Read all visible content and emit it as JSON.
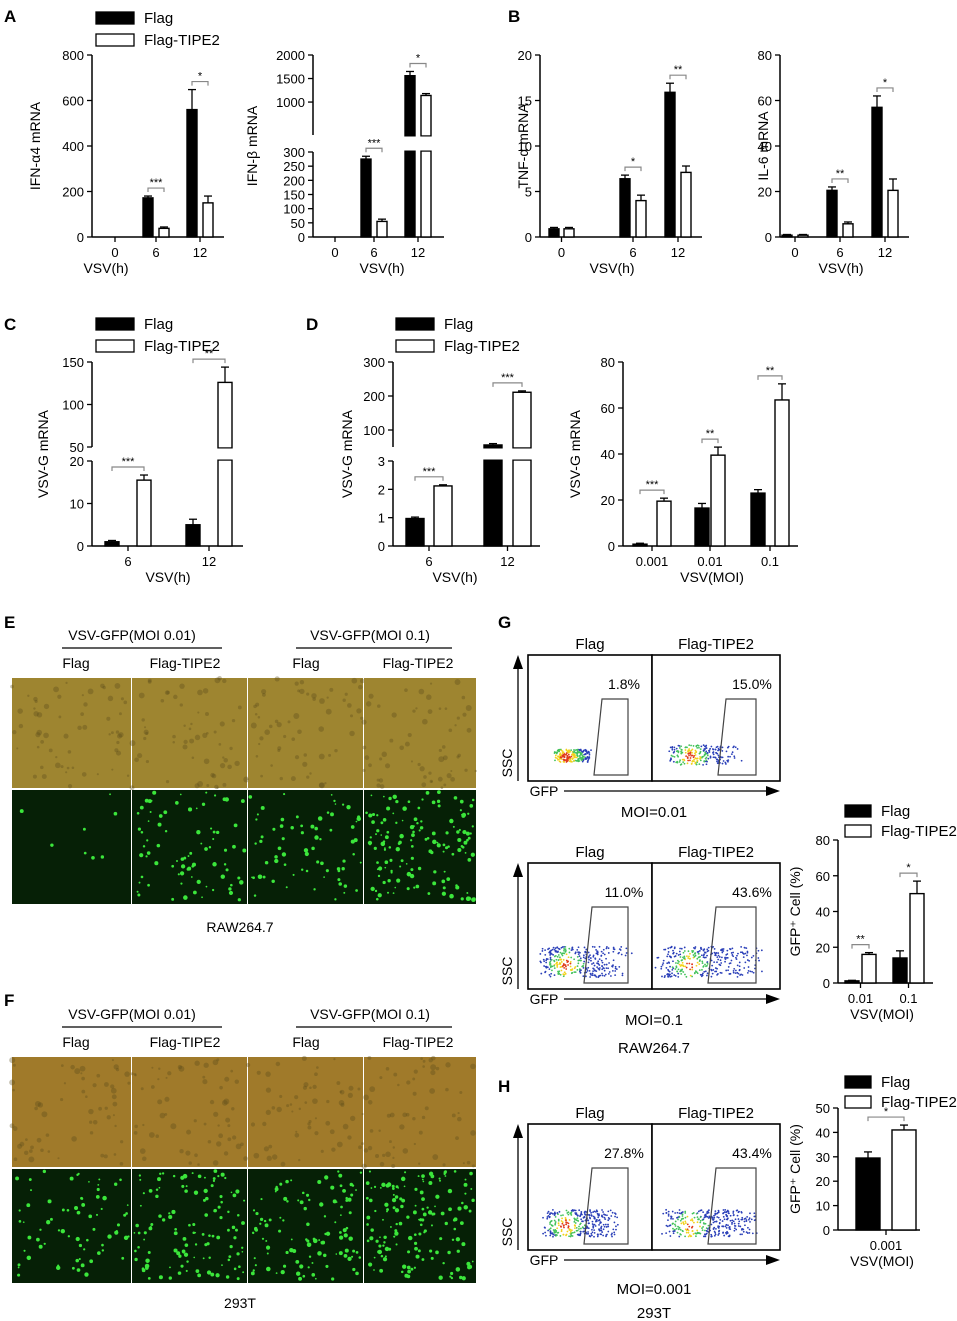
{
  "panel_letters": {
    "A": "A",
    "B": "B",
    "C": "C",
    "D": "D",
    "E": "E",
    "F": "F",
    "G": "G",
    "H": "H"
  },
  "colors": {
    "flag": "#000000",
    "tipe2": "#ffffff",
    "bf_raw": "#9e8530",
    "bf_293": "#a07a2a",
    "fluor_bg": "#062006",
    "fluor_dot": "#3be63b"
  },
  "chart_data": [
    {
      "id": "A1",
      "type": "bar",
      "panel": "A",
      "ylabel": "IFN-α4 mRNA",
      "xlabel": "VSV(h)",
      "categories": [
        "0",
        "6",
        "12"
      ],
      "ylim": [
        0,
        800
      ],
      "yticks": [
        "0",
        "200",
        "400",
        "600",
        "800"
      ],
      "legend": [
        "Flag",
        "Flag-TIPE2"
      ],
      "series": [
        {
          "name": "Flag",
          "values": [
            0,
            172,
            560
          ],
          "err": [
            0,
            8,
            88
          ]
        },
        {
          "name": "Flag-TIPE2",
          "values": [
            0,
            38,
            150
          ],
          "err": [
            0,
            6,
            30
          ]
        }
      ],
      "significance": [
        "",
        "***",
        "*"
      ]
    },
    {
      "id": "A2",
      "type": "bar",
      "panel": "A",
      "ylabel": "IFN-β mRNA",
      "xlabel": "VSV(h)",
      "categories": [
        "0",
        "6",
        "12"
      ],
      "broken_axis": {
        "lower": [
          0,
          300
        ],
        "upper": [
          300,
          2000
        ]
      },
      "yticks_lower": [
        "0",
        "50",
        "100",
        "150",
        "200",
        "250",
        "300"
      ],
      "yticks_upper": [
        "1000",
        "1500",
        "2000"
      ],
      "series": [
        {
          "name": "Flag",
          "values": [
            0,
            275,
            1560
          ],
          "err": [
            0,
            10,
            90
          ]
        },
        {
          "name": "Flag-TIPE2",
          "values": [
            0,
            55,
            1140
          ],
          "err": [
            0,
            8,
            40
          ]
        }
      ],
      "significance": [
        "",
        "***",
        "*"
      ]
    },
    {
      "id": "B1",
      "type": "bar",
      "panel": "B",
      "ylabel": "TNF-α mRNA",
      "xlabel": "VSV(h)",
      "categories": [
        "0",
        "6",
        "12"
      ],
      "ylim": [
        0,
        20
      ],
      "yticks": [
        "0",
        "5",
        "10",
        "15",
        "20"
      ],
      "series": [
        {
          "name": "Flag",
          "values": [
            0.9,
            6.4,
            15.9
          ],
          "err": [
            0.15,
            0.4,
            1.0
          ]
        },
        {
          "name": "Flag-TIPE2",
          "values": [
            0.9,
            4.0,
            7.1
          ],
          "err": [
            0.15,
            0.6,
            0.7
          ]
        }
      ],
      "significance": [
        "",
        "*",
        "**"
      ]
    },
    {
      "id": "B2",
      "type": "bar",
      "panel": "B",
      "ylabel": "IL-6 mRNA",
      "xlabel": "VSV(h)",
      "categories": [
        "0",
        "6",
        "12"
      ],
      "ylim": [
        0,
        80
      ],
      "yticks": [
        "0",
        "20",
        "40",
        "60",
        "80"
      ],
      "series": [
        {
          "name": "Flag",
          "values": [
            0.8,
            20.5,
            57
          ],
          "err": [
            0.3,
            1.5,
            5
          ]
        },
        {
          "name": "Flag-TIPE2",
          "values": [
            0.8,
            5.8,
            20.5
          ],
          "err": [
            0.3,
            0.8,
            5
          ]
        }
      ],
      "significance": [
        "",
        "**",
        "*"
      ]
    },
    {
      "id": "C",
      "type": "bar",
      "panel": "C",
      "ylabel": "VSV-G mRNA",
      "xlabel": "VSV(h)",
      "categories": [
        "6",
        "12"
      ],
      "broken_axis": {
        "lower": [
          0,
          20
        ],
        "upper": [
          50,
          150
        ]
      },
      "yticks_lower": [
        "0",
        "10",
        "20"
      ],
      "yticks_upper": [
        "50",
        "100",
        "150"
      ],
      "legend": [
        "Flag",
        "Flag-TIPE2"
      ],
      "series": [
        {
          "name": "Flag",
          "values": [
            1.0,
            5.0
          ],
          "err": [
            0.3,
            1.3
          ]
        },
        {
          "name": "Flag-TIPE2",
          "values": [
            15.5,
            126
          ],
          "err": [
            1.2,
            18
          ]
        }
      ],
      "significance": [
        "***",
        "**"
      ]
    },
    {
      "id": "D1",
      "type": "bar",
      "panel": "D",
      "ylabel": "VSV-G mRNA",
      "xlabel": "VSV(h)",
      "categories": [
        "6",
        "12"
      ],
      "broken_axis": {
        "lower": [
          0,
          3
        ],
        "upper": [
          50,
          300
        ]
      },
      "yticks_lower": [
        "0",
        "1",
        "2",
        "3"
      ],
      "yticks_upper": [
        "100",
        "200",
        "300"
      ],
      "legend": [
        "Flag",
        "Flag-TIPE2"
      ],
      "series": [
        {
          "name": "Flag",
          "values": [
            0.97,
            56
          ],
          "err": [
            0.05,
            4
          ]
        },
        {
          "name": "Flag-TIPE2",
          "values": [
            2.12,
            211
          ],
          "err": [
            0.04,
            4
          ]
        }
      ],
      "significance": [
        "***",
        "***"
      ]
    },
    {
      "id": "D2",
      "type": "bar",
      "panel": "D",
      "ylabel": "VSV-G mRNA",
      "xlabel": "VSV(MOI)",
      "categories": [
        "0.001",
        "0.01",
        "0.1"
      ],
      "ylim": [
        0,
        80
      ],
      "yticks": [
        "0",
        "20",
        "40",
        "60",
        "80"
      ],
      "series": [
        {
          "name": "Flag",
          "values": [
            0.8,
            16.5,
            23
          ],
          "err": [
            0.4,
            2,
            1.5
          ]
        },
        {
          "name": "Flag-TIPE2",
          "values": [
            19.5,
            39.5,
            63.5
          ],
          "err": [
            1.3,
            3.5,
            7
          ]
        }
      ],
      "significance": [
        "***",
        "**",
        "**"
      ]
    },
    {
      "id": "G_bar",
      "type": "bar",
      "panel": "G",
      "ylabel": "GFP⁺ Cell (%)",
      "xlabel": "VSV(MOI)",
      "categories": [
        "0.01",
        "0.1"
      ],
      "ylim": [
        0,
        80
      ],
      "yticks": [
        "0",
        "20",
        "40",
        "60",
        "80"
      ],
      "legend": [
        "Flag",
        "Flag-TIPE2"
      ],
      "series": [
        {
          "name": "Flag",
          "values": [
            1.2,
            14
          ],
          "err": [
            0.3,
            4
          ]
        },
        {
          "name": "Flag-TIPE2",
          "values": [
            16,
            50
          ],
          "err": [
            1,
            7
          ]
        }
      ],
      "significance": [
        "**",
        "*"
      ]
    },
    {
      "id": "H_bar",
      "type": "bar",
      "panel": "H",
      "ylabel": "GFP⁺ Cell (%)",
      "xlabel": "VSV(MOI)",
      "categories": [
        "0.001"
      ],
      "ylim": [
        0,
        50
      ],
      "yticks": [
        "0",
        "10",
        "20",
        "30",
        "40",
        "50"
      ],
      "legend": [
        "Flag",
        "Flag-TIPE2"
      ],
      "series": [
        {
          "name": "Flag",
          "values": [
            29.5
          ],
          "err": [
            2.5
          ]
        },
        {
          "name": "Flag-TIPE2",
          "values": [
            41
          ],
          "err": [
            2
          ]
        }
      ],
      "significance": [
        "*"
      ]
    }
  ],
  "micrographs": {
    "E": {
      "group1": "VSV-GFP(MOI 0.01)",
      "group2": "VSV-GFP(MOI 0.1)",
      "cols": [
        "Flag",
        "Flag-TIPE2",
        "Flag",
        "Flag-TIPE2"
      ],
      "caption": "RAW264.7",
      "fluor_density": [
        0.05,
        0.5,
        0.45,
        0.9
      ]
    },
    "F": {
      "group1": "VSV-GFP(MOI 0.01)",
      "group2": "VSV-GFP(MOI 0.1)",
      "cols": [
        "Flag",
        "Flag-TIPE2",
        "Flag",
        "Flag-TIPE2"
      ],
      "caption": "293T",
      "fluor_density": [
        0.45,
        0.75,
        0.7,
        0.95
      ]
    }
  },
  "flow": {
    "G1": {
      "cols": [
        "Flag",
        "Flag-TIPE2"
      ],
      "pct": [
        "1.8%",
        "15.0%"
      ],
      "ssc": "SSC",
      "gfp": "GFP",
      "moi": "MOI=0.01"
    },
    "G2": {
      "cols": [
        "Flag",
        "Flag-TIPE2"
      ],
      "pct": [
        "11.0%",
        "43.6%"
      ],
      "ssc": "SSC",
      "gfp": "GFP",
      "moi": "MOI=0.1",
      "caption": "RAW264.7"
    },
    "H": {
      "cols": [
        "Flag",
        "Flag-TIPE2"
      ],
      "pct": [
        "27.8%",
        "43.4%"
      ],
      "ssc": "SSC",
      "gfp": "GFP",
      "moi": "MOI=0.001",
      "caption": "293T"
    }
  }
}
